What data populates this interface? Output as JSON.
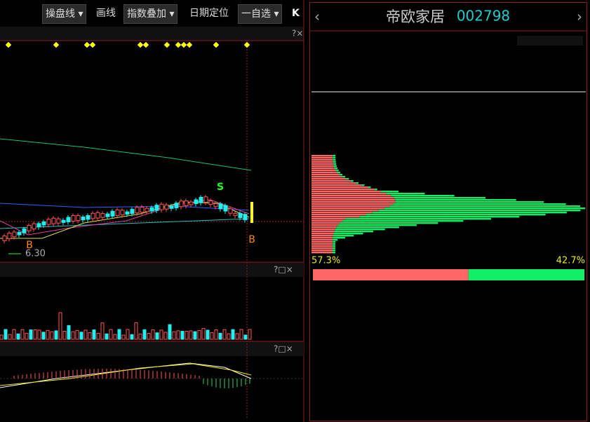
{
  "toolbar": {
    "items": [
      "操盘线 ▾",
      "画线",
      "指数叠加 ▾",
      "日期定位",
      "一自选 ▾"
    ],
    "collapse": "K"
  },
  "main_chart": {
    "signals": [
      "S",
      "B",
      "B"
    ],
    "low_label": "6.30",
    "panel_controls": "?×"
  },
  "volume_panel": {
    "panel_controls": "?□×"
  },
  "macd_panel": {
    "panel_controls": "?□×"
  },
  "stock": {
    "name": "帝欧家居",
    "code": "002798",
    "prev": "‹",
    "next": "›"
  },
  "chips": {
    "profit_ratio": "57.3%",
    "loss_ratio": "42.7%"
  }
}
